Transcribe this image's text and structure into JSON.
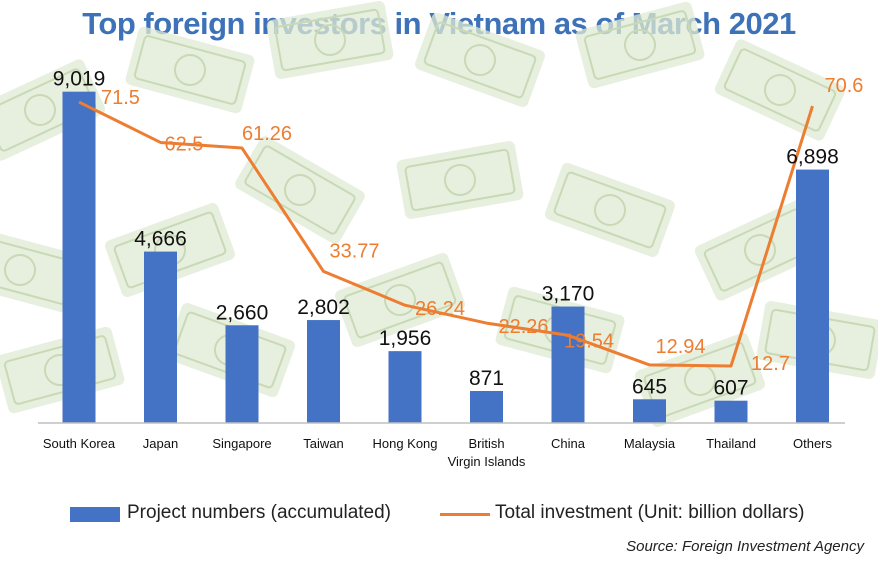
{
  "title": "Top foreign investors in Vietnam as of March 2021",
  "source": "Source: Foreign Investment Agency",
  "colors": {
    "title": "#3d72b8",
    "bar": "#4472c4",
    "line": "#ed7d31",
    "line_label": "#ed7d31",
    "bar_label": "#111111",
    "axis": "#bfbfbf",
    "background_money": "#dfe9d3"
  },
  "chart_data": {
    "type": "bar",
    "categories": [
      "South Korea",
      "Japan",
      "Singapore",
      "Taiwan",
      "Hong Kong",
      "British Virgin Islands",
      "China",
      "Malaysia",
      "Thailand",
      "Others"
    ],
    "category_lines": [
      [
        "South Korea"
      ],
      [
        "Japan"
      ],
      [
        "Singapore"
      ],
      [
        "Taiwan"
      ],
      [
        "Hong Kong"
      ],
      [
        "British",
        "Virgin Islands"
      ],
      [
        "China"
      ],
      [
        "Malaysia"
      ],
      [
        "Thailand"
      ],
      [
        "Others"
      ]
    ],
    "series": [
      {
        "name": "Project numbers (accumulated)",
        "type": "bar",
        "values": [
          9019,
          4666,
          2660,
          2802,
          1956,
          871,
          3170,
          645,
          607,
          6898
        ],
        "labels": [
          "9,019",
          "4,666",
          "2,660",
          "2,802",
          "1,956",
          "871",
          "3,170",
          "645",
          "607",
          "6,898"
        ]
      },
      {
        "name": "Total investment (Unit: billion dollars)",
        "type": "line",
        "values": [
          71.5,
          62.5,
          61.26,
          33.77,
          26.24,
          22.26,
          19.54,
          12.94,
          12.7,
          70.6
        ],
        "labels": [
          "71.5",
          "62.5",
          "61.26",
          "33.77",
          "26.24",
          "22.26",
          "19.54",
          "12.94",
          "12.7",
          "70.6"
        ]
      }
    ],
    "bar_axis_range": [
      0,
      9500
    ],
    "line_axis_range": [
      0,
      88
    ],
    "grid": false,
    "legend_position": "bottom"
  }
}
